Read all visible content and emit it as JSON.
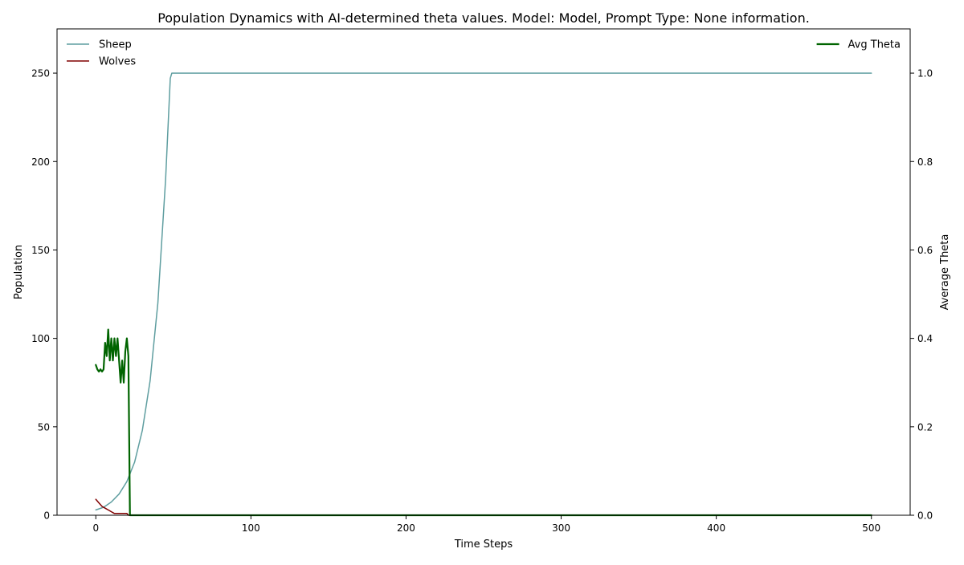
{
  "chart_data": {
    "type": "line",
    "title": "Population Dynamics with AI-determined theta values. Model: Model, Prompt Type: None information.",
    "xlabel": "Time Steps",
    "ylabel_left": "Population",
    "ylabel_right": "Average Theta",
    "xlim": [
      -25,
      525
    ],
    "ylim_left": [
      0,
      275
    ],
    "ylim_right": [
      0,
      1.1
    ],
    "x_ticks": [
      0,
      100,
      200,
      300,
      400,
      500
    ],
    "y_left_ticks": [
      0,
      50,
      100,
      150,
      200,
      250
    ],
    "y_right_ticks": [
      0.0,
      0.2,
      0.4,
      0.6,
      0.8,
      1.0
    ],
    "x_tick_labels": [
      "0",
      "100",
      "200",
      "300",
      "400",
      "500"
    ],
    "y_left_tick_labels": [
      "0",
      "50",
      "100",
      "150",
      "200",
      "250"
    ],
    "y_right_tick_labels": [
      "0.0",
      "0.2",
      "0.4",
      "0.6",
      "0.8",
      "1.0"
    ],
    "grid": false,
    "legend_left_placement": "top-left",
    "legend_right_placement": "top-right",
    "series": [
      {
        "name": "Sheep",
        "axis": "left",
        "color": "#5f9ea0",
        "width": 1.5,
        "points": [
          [
            0,
            3
          ],
          [
            5,
            4.5
          ],
          [
            10,
            7.5
          ],
          [
            15,
            12
          ],
          [
            20,
            19
          ],
          [
            25,
            30
          ],
          [
            30,
            48
          ],
          [
            35,
            76
          ],
          [
            40,
            120
          ],
          [
            45,
            190
          ],
          [
            48,
            247
          ],
          [
            49,
            250
          ],
          [
            500,
            250
          ]
        ]
      },
      {
        "name": "Wolves",
        "axis": "left",
        "color": "#800000",
        "width": 1.5,
        "points": [
          [
            0,
            9
          ],
          [
            2,
            7
          ],
          [
            4,
            5
          ],
          [
            6,
            4
          ],
          [
            8,
            3
          ],
          [
            10,
            2
          ],
          [
            12,
            1
          ],
          [
            14,
            1
          ],
          [
            16,
            1
          ],
          [
            18,
            1
          ],
          [
            20,
            1
          ],
          [
            21,
            0
          ],
          [
            500,
            0
          ]
        ]
      },
      {
        "name": "Avg Theta",
        "axis": "right",
        "color": "#006400",
        "width": 2.2,
        "points": [
          [
            0,
            0.34
          ],
          [
            1,
            0.33
          ],
          [
            2,
            0.325
          ],
          [
            3,
            0.33
          ],
          [
            4,
            0.325
          ],
          [
            5,
            0.33
          ],
          [
            6,
            0.39
          ],
          [
            7,
            0.36
          ],
          [
            8,
            0.42
          ],
          [
            9,
            0.35
          ],
          [
            10,
            0.4
          ],
          [
            11,
            0.35
          ],
          [
            12,
            0.4
          ],
          [
            13,
            0.36
          ],
          [
            14,
            0.4
          ],
          [
            15,
            0.35
          ],
          [
            16,
            0.3
          ],
          [
            17,
            0.35
          ],
          [
            18,
            0.3
          ],
          [
            19,
            0.37
          ],
          [
            20,
            0.4
          ],
          [
            21,
            0.36
          ],
          [
            22,
            0.0
          ],
          [
            500,
            0.0
          ]
        ]
      }
    ]
  }
}
